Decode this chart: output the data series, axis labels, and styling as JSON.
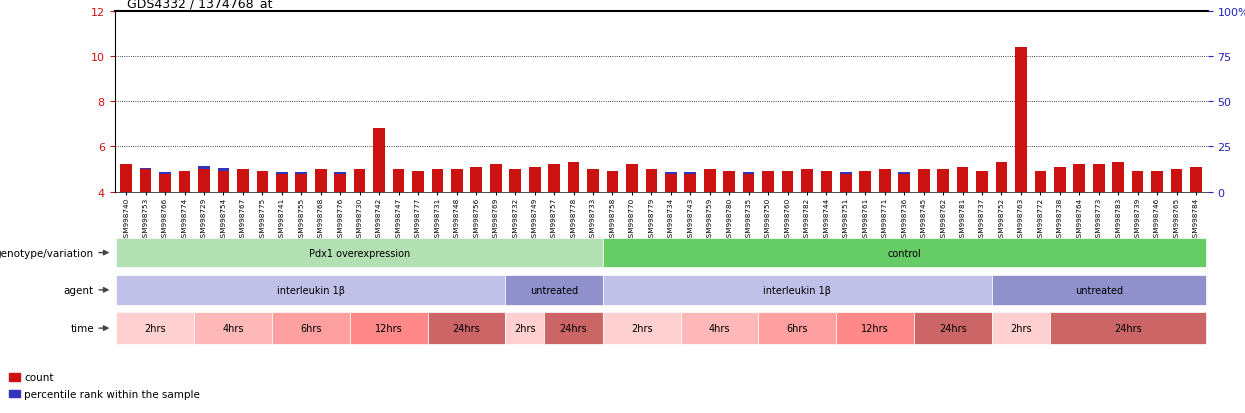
{
  "title": "GDS4332 / 1374768_at",
  "samples": [
    "GSM998740",
    "GSM998753",
    "GSM998766",
    "GSM998774",
    "GSM998729",
    "GSM998754",
    "GSM998767",
    "GSM998775",
    "GSM998741",
    "GSM998755",
    "GSM998768",
    "GSM998776",
    "GSM998730",
    "GSM998742",
    "GSM998747",
    "GSM998777",
    "GSM998731",
    "GSM998748",
    "GSM998756",
    "GSM998769",
    "GSM998732",
    "GSM998749",
    "GSM998757",
    "GSM998778",
    "GSM998733",
    "GSM998758",
    "GSM998770",
    "GSM998779",
    "GSM998734",
    "GSM998743",
    "GSM998759",
    "GSM998780",
    "GSM998735",
    "GSM998750",
    "GSM998760",
    "GSM998782",
    "GSM998744",
    "GSM998751",
    "GSM998761",
    "GSM998771",
    "GSM998736",
    "GSM998745",
    "GSM998762",
    "GSM998781",
    "GSM998737",
    "GSM998752",
    "GSM998763",
    "GSM998772",
    "GSM998738",
    "GSM998764",
    "GSM998773",
    "GSM998783",
    "GSM998739",
    "GSM998746",
    "GSM998765",
    "GSM998784"
  ],
  "red_values": [
    5.2,
    5.0,
    4.8,
    4.9,
    5.0,
    4.9,
    5.0,
    4.9,
    4.8,
    4.8,
    5.0,
    4.8,
    5.0,
    6.8,
    5.0,
    4.9,
    5.0,
    5.0,
    5.1,
    5.2,
    5.0,
    5.1,
    5.2,
    5.3,
    5.0,
    4.9,
    5.2,
    5.0,
    4.8,
    4.8,
    5.0,
    4.9,
    4.8,
    4.9,
    4.9,
    5.0,
    4.9,
    4.8,
    4.9,
    5.0,
    4.8,
    5.0,
    5.0,
    5.1,
    4.9,
    5.3,
    10.4,
    4.9,
    5.1,
    5.2,
    5.2,
    5.3,
    4.9,
    4.9,
    5.0,
    5.1
  ],
  "blue_pct": [
    14,
    13,
    11,
    11,
    14,
    13,
    11,
    11,
    11,
    11,
    11,
    11,
    11,
    14,
    11,
    11,
    11,
    11,
    11,
    11,
    11,
    11,
    11,
    11,
    11,
    11,
    11,
    11,
    11,
    11,
    11,
    11,
    11,
    11,
    11,
    11,
    11,
    11,
    11,
    11,
    11,
    11,
    11,
    11,
    11,
    11,
    14,
    11,
    11,
    11,
    11,
    11,
    11,
    11,
    11,
    11
  ],
  "ymin": 4.0,
  "ymax": 12.0,
  "yticks_left": [
    4,
    6,
    8,
    10,
    12
  ],
  "yticks_right": [
    0,
    25,
    50,
    75,
    100
  ],
  "bar_color_red": "#cc1111",
  "bar_color_blue": "#3333bb",
  "annotation_rows": {
    "genotype": {
      "label": "genotype/variation",
      "groups": [
        {
          "text": "Pdx1 overexpression",
          "start": 0,
          "end": 24,
          "color": "#b3e0b3"
        },
        {
          "text": "control",
          "start": 25,
          "end": 55,
          "color": "#66cc66"
        }
      ]
    },
    "agent": {
      "label": "agent",
      "groups": [
        {
          "text": "interleukin 1β",
          "start": 0,
          "end": 19,
          "color": "#c0c0e8"
        },
        {
          "text": "untreated",
          "start": 20,
          "end": 24,
          "color": "#9090cc"
        },
        {
          "text": "interleukin 1β",
          "start": 25,
          "end": 44,
          "color": "#c0c0e8"
        },
        {
          "text": "untreated",
          "start": 45,
          "end": 55,
          "color": "#9090cc"
        }
      ]
    },
    "time": {
      "label": "time",
      "groups": [
        {
          "text": "2hrs",
          "start": 0,
          "end": 3,
          "color": "#ffd0d0"
        },
        {
          "text": "4hrs",
          "start": 4,
          "end": 7,
          "color": "#ffb8b8"
        },
        {
          "text": "6hrs",
          "start": 8,
          "end": 11,
          "color": "#ffa0a0"
        },
        {
          "text": "12hrs",
          "start": 12,
          "end": 15,
          "color": "#ff8888"
        },
        {
          "text": "24hrs",
          "start": 16,
          "end": 19,
          "color": "#cc6666"
        },
        {
          "text": "2hrs",
          "start": 20,
          "end": 21,
          "color": "#ffd0d0"
        },
        {
          "text": "24hrs",
          "start": 22,
          "end": 24,
          "color": "#cc6666"
        },
        {
          "text": "2hrs",
          "start": 25,
          "end": 28,
          "color": "#ffd0d0"
        },
        {
          "text": "4hrs",
          "start": 29,
          "end": 32,
          "color": "#ffb8b8"
        },
        {
          "text": "6hrs",
          "start": 33,
          "end": 36,
          "color": "#ffa0a0"
        },
        {
          "text": "12hrs",
          "start": 37,
          "end": 40,
          "color": "#ff8888"
        },
        {
          "text": "24hrs",
          "start": 41,
          "end": 44,
          "color": "#cc6666"
        },
        {
          "text": "2hrs",
          "start": 45,
          "end": 47,
          "color": "#ffd0d0"
        },
        {
          "text": "24hrs",
          "start": 48,
          "end": 55,
          "color": "#cc6666"
        }
      ]
    }
  },
  "legend_items": [
    {
      "label": "count",
      "color": "#cc1111"
    },
    {
      "label": "percentile rank within the sample",
      "color": "#3333bb"
    }
  ]
}
